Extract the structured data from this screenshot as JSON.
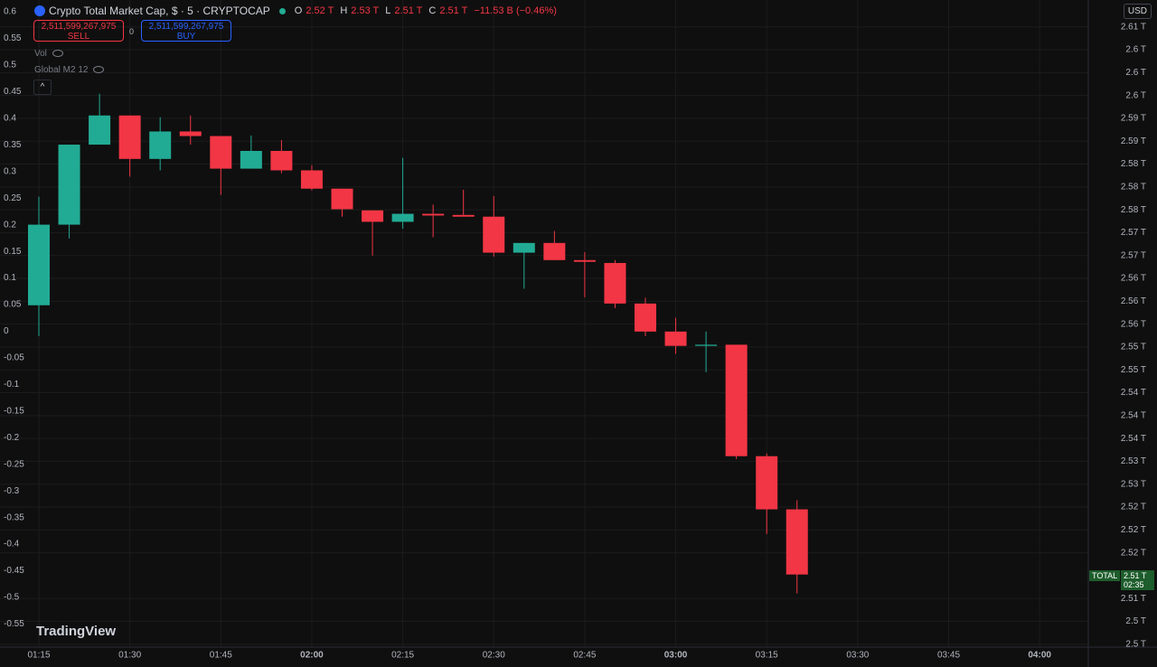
{
  "header": {
    "symbol": "Crypto Total Market Cap, $ · 5 · CRYPTOCAP",
    "ohlc": [
      {
        "key": "O",
        "value": "2.52 T"
      },
      {
        "key": "H",
        "value": "2.53 T"
      },
      {
        "key": "L",
        "value": "2.51 T"
      },
      {
        "key": "C",
        "value": "2.51 T"
      }
    ],
    "change": "−11.53 B (−0.46%)"
  },
  "trade": {
    "sell_price": "2,511,599,267,975",
    "sell": "SELL",
    "spread": "0",
    "buy_price": "2,511,599,267,975",
    "buy": "BUY"
  },
  "indicators": [
    "Vol",
    "Global M2 12"
  ],
  "currency": "USD",
  "brand": "TradingView",
  "price_label": {
    "symbol": "TOTAL",
    "value": "2.51 T",
    "countdown": "02:35"
  },
  "chart_data": {
    "type": "candlestick",
    "xticks": [
      "01:15",
      "01:30",
      "01:45",
      "02:00",
      "02:15",
      "02:30",
      "02:45",
      "03:00",
      "03:15",
      "03:30",
      "03:45",
      "04:00"
    ],
    "open": [
      2.5593,
      2.5734,
      2.5874,
      2.5925,
      2.5849,
      2.5897,
      2.5889,
      2.5832,
      2.5863,
      2.5829,
      2.5797,
      2.5759,
      2.5739,
      2.5753,
      2.5751,
      2.5748,
      2.5685,
      2.5702,
      2.5672,
      2.5667,
      2.5596,
      2.5547,
      2.5522,
      2.5524,
      2.5329,
      2.5236
    ],
    "high": [
      2.5783,
      2.5874,
      2.5963,
      2.5925,
      2.5922,
      2.5925,
      2.5889,
      2.589,
      2.5882,
      2.5838,
      2.5797,
      2.5759,
      2.5851,
      2.5769,
      2.5795,
      2.5784,
      2.5702,
      2.5723,
      2.5686,
      2.5672,
      2.5606,
      2.5571,
      2.5547,
      2.5524,
      2.5334,
      2.5252
    ],
    "low": [
      2.5539,
      2.571,
      2.5874,
      2.5818,
      2.5829,
      2.5874,
      2.5786,
      2.5832,
      2.5824,
      2.5794,
      2.5748,
      2.568,
      2.5727,
      2.5712,
      2.5748,
      2.5678,
      2.5622,
      2.5672,
      2.5607,
      2.5588,
      2.5539,
      2.5508,
      2.5476,
      2.5324,
      2.5193,
      2.5089
    ],
    "close": [
      2.5734,
      2.5874,
      2.5925,
      2.5849,
      2.5897,
      2.5889,
      2.5832,
      2.5863,
      2.5829,
      2.5797,
      2.5761,
      2.5739,
      2.5753,
      2.575,
      2.5748,
      2.5685,
      2.5702,
      2.5672,
      2.5669,
      2.5596,
      2.5547,
      2.5522,
      2.5524,
      2.5329,
      2.5236,
      2.5122
    ],
    "up_color": "#22ab94",
    "down_color": "#f23645",
    "ylim": [
      2.4995,
      2.6127
    ],
    "yticks": [
      {
        "value": 2.608,
        "label": "2.61 T"
      },
      {
        "value": 2.604,
        "label": "2.6 T"
      },
      {
        "value": 2.6,
        "label": "2.6 T"
      },
      {
        "value": 2.596,
        "label": "2.6 T"
      },
      {
        "value": 2.592,
        "label": "2.59 T"
      },
      {
        "value": 2.588,
        "label": "2.59 T"
      },
      {
        "value": 2.584,
        "label": "2.58 T"
      },
      {
        "value": 2.58,
        "label": "2.58 T"
      },
      {
        "value": 2.576,
        "label": "2.58 T"
      },
      {
        "value": 2.572,
        "label": "2.57 T"
      },
      {
        "value": 2.568,
        "label": "2.57 T"
      },
      {
        "value": 2.564,
        "label": "2.56 T"
      },
      {
        "value": 2.56,
        "label": "2.56 T"
      },
      {
        "value": 2.556,
        "label": "2.56 T"
      },
      {
        "value": 2.552,
        "label": "2.55 T"
      },
      {
        "value": 2.548,
        "label": "2.55 T"
      },
      {
        "value": 2.544,
        "label": "2.54 T"
      },
      {
        "value": 2.54,
        "label": "2.54 T"
      },
      {
        "value": 2.536,
        "label": "2.54 T"
      },
      {
        "value": 2.532,
        "label": "2.53 T"
      },
      {
        "value": 2.528,
        "label": "2.53 T"
      },
      {
        "value": 2.524,
        "label": "2.52 T"
      },
      {
        "value": 2.52,
        "label": "2.52 T"
      },
      {
        "value": 2.516,
        "label": "2.52 T"
      },
      {
        "value": 2.508,
        "label": "2.51 T"
      },
      {
        "value": 2.504,
        "label": "2.5 T"
      },
      {
        "value": 2.5,
        "label": "2.5 T"
      }
    ],
    "y2lim": [
      -0.5934,
      0.6222
    ],
    "y2ticks": [
      0.6,
      0.55,
      0.5,
      0.45,
      0.4,
      0.35,
      0.3,
      0.25,
      0.2,
      0.15,
      0.1,
      0.05,
      0,
      -0.05,
      -0.1,
      -0.15,
      -0.2,
      -0.25,
      -0.3,
      -0.35,
      -0.4,
      -0.45,
      -0.5,
      -0.55
    ],
    "grid": true
  }
}
